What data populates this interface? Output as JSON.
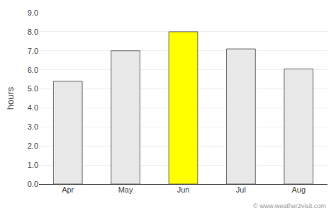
{
  "chart_data": {
    "type": "bar",
    "categories": [
      "Apr",
      "May",
      "Jun",
      "Jul",
      "Aug"
    ],
    "values": [
      5.4,
      7.0,
      8.0,
      7.1,
      6.05
    ],
    "colors": [
      "#e8e8e8",
      "#e8e8e8",
      "#ffff00",
      "#e8e8e8",
      "#e8e8e8"
    ],
    "ylabel": "hours",
    "ylim": [
      0,
      9.0
    ],
    "yticks": [
      {
        "value": 0.0,
        "label": "0.0"
      },
      {
        "value": 1.0,
        "label": "1.0"
      },
      {
        "value": 2.0,
        "label": "2.0"
      },
      {
        "value": 3.0,
        "label": "3.0"
      },
      {
        "value": 4.0,
        "label": "4.0"
      },
      {
        "value": 5.0,
        "label": "5.0"
      },
      {
        "value": 6.0,
        "label": "6.0"
      },
      {
        "value": 7.0,
        "label": "7.0"
      },
      {
        "value": 8.0,
        "label": "8.0"
      },
      {
        "value": 9.0,
        "label": "9.0"
      }
    ],
    "grid": true,
    "annotations": [
      "© www.weather2visit.com"
    ]
  }
}
